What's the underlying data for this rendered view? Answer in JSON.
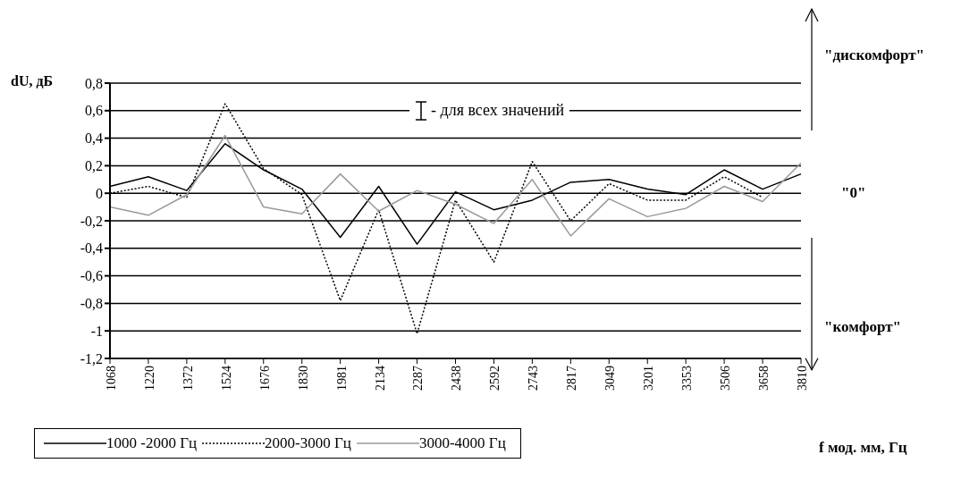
{
  "chart_data": {
    "type": "line",
    "ylabel": "dU, дБ",
    "xlabel": "f мод. мм, Гц",
    "categories": [
      "1068",
      "1220",
      "1372",
      "1524",
      "1676",
      "1830",
      "1981",
      "2134",
      "2287",
      "2438",
      "2592",
      "2743",
      "2817",
      "3049",
      "3201",
      "3353",
      "3506",
      "3658",
      "3810"
    ],
    "series": [
      {
        "name": "1000 -2000 Гц",
        "color": "#000000",
        "line_style": "solid",
        "values": [
          0.05,
          0.12,
          0.02,
          0.36,
          0.17,
          0.03,
          -0.32,
          0.05,
          -0.37,
          0.01,
          -0.12,
          -0.05,
          0.08,
          0.1,
          0.03,
          -0.01,
          0.17,
          0.03,
          0.14
        ]
      },
      {
        "name": "2000-3000 Гц",
        "color": "#000000",
        "line_style": "dotted",
        "values": [
          0.0,
          0.05,
          -0.03,
          0.65,
          0.18,
          -0.01,
          -0.78,
          -0.12,
          -1.02,
          -0.05,
          -0.5,
          0.23,
          -0.2,
          0.07,
          -0.05,
          -0.05,
          0.12,
          -0.03,
          null
        ]
      },
      {
        "name": "3000-4000 Гц",
        "color": "#999999",
        "line_style": "solid",
        "values": [
          -0.1,
          -0.16,
          -0.01,
          0.42,
          -0.1,
          -0.15,
          0.14,
          -0.13,
          0.02,
          -0.08,
          -0.22,
          0.1,
          -0.31,
          -0.04,
          -0.17,
          -0.11,
          0.05,
          -0.06,
          0.22
        ]
      }
    ],
    "ylim": [
      -1.2,
      0.8
    ],
    "yticks": [
      {
        "value": -1.2,
        "label": "-1,2"
      },
      -1,
      {
        "value": -0.8,
        "label": "-0,8"
      },
      {
        "value": -0.6,
        "label": "-0,6"
      },
      {
        "value": -0.4,
        "label": "-0,4"
      },
      {
        "value": -0.2,
        "label": "-0,2"
      },
      0,
      {
        "value": 0.2,
        "label": "0,2"
      },
      {
        "value": 0.4,
        "label": "0,4"
      },
      {
        "value": 0.6,
        "label": "0,6"
      },
      {
        "value": 0.8,
        "label": "0,8"
      }
    ],
    "grid": "y",
    "legend": "bottom",
    "marker": "none",
    "annotations": [
      "- для всех значений",
      "\"дискомфорт\"",
      "\"0\"",
      "\"комфорт\""
    ]
  }
}
